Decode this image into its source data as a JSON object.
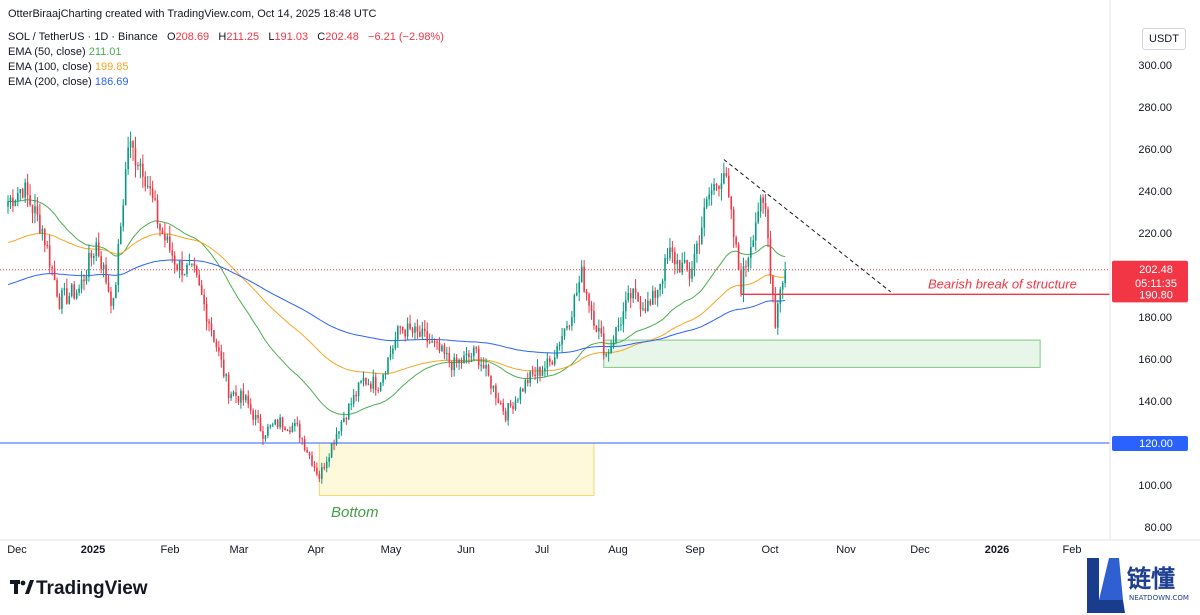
{
  "header": {
    "attribution": "OtterBiraajCharting created with TradingView.com, Oct 14, 2025 18:48 UTC"
  },
  "legend": {
    "symbol_line_prefix": "SOL / TetherUS · 1D · Binance",
    "ohlc": {
      "o_label": "O",
      "o_value": "208.69",
      "h_label": "H",
      "h_value": "211.25",
      "l_label": "L",
      "l_value": "191.03",
      "c_label": "C",
      "c_value": "202.48",
      "change": "−6.21 (−2.98%)"
    },
    "indicators": [
      {
        "label": "EMA (50, close)",
        "value": "211.01",
        "color": "#4caf50"
      },
      {
        "label": "EMA (100, close)",
        "value": "199.85",
        "color": "#f5a623"
      },
      {
        "label": "EMA (200, close)",
        "value": "186.69",
        "color": "#2962ff"
      }
    ]
  },
  "currency_button": "USDT",
  "price_labels": {
    "last_price": "202.48",
    "countdown": "05:11:35",
    "bos_level": "190.80",
    "support_level": "120.00"
  },
  "annotations": {
    "bos_text": "Bearish break of structure",
    "bottom_text": "Bottom"
  },
  "branding": {
    "tradingview": "TradingView",
    "corner_cn": "链懂",
    "corner_en": "NEATDOWN.COM"
  },
  "colors": {
    "up": "#089981",
    "down": "#f23645",
    "ema50": "#4caf50",
    "ema100": "#f5a623",
    "ema200": "#2962ff",
    "support_line": "#2962ff",
    "bos": "#f23645",
    "demand_zone": "#e8f5e9",
    "bottom_zone": "#fff9db"
  },
  "chart_data": {
    "type": "candlestick",
    "symbol": "SOL / TetherUS",
    "interval": "1D",
    "exchange": "Binance",
    "y_axis": {
      "ticks": [
        80,
        100,
        120,
        140,
        160,
        180,
        200,
        220,
        240,
        260,
        280,
        300
      ],
      "tick_labels": [
        "80.00",
        "100.00",
        "120.00",
        "140.00",
        "160.00",
        "180.00",
        "200.00",
        "220.00",
        "240.00",
        "260.00",
        "280.00",
        "300.00"
      ],
      "ylim": [
        74,
        312
      ]
    },
    "x_axis": {
      "ticks": [
        "Dec",
        "2025",
        "Feb",
        "Mar",
        "Apr",
        "May",
        "Jun",
        "Jul",
        "Aug",
        "Sep",
        "Oct",
        "Nov",
        "Dec",
        "2026",
        "Feb"
      ],
      "bold_ticks": [
        "2025",
        "2026"
      ]
    },
    "price_anchors": [
      {
        "date": "2024-12-01",
        "close": 235
      },
      {
        "date": "2024-12-07",
        "close": 242
      },
      {
        "date": "2024-12-15",
        "close": 222
      },
      {
        "date": "2024-12-22",
        "close": 188
      },
      {
        "date": "2024-12-30",
        "close": 193
      },
      {
        "date": "2025-01-06",
        "close": 215
      },
      {
        "date": "2025-01-13",
        "close": 185
      },
      {
        "date": "2025-01-19",
        "close": 262
      },
      {
        "date": "2025-01-25",
        "close": 252
      },
      {
        "date": "2025-02-01",
        "close": 222
      },
      {
        "date": "2025-02-08",
        "close": 205
      },
      {
        "date": "2025-02-15",
        "close": 200
      },
      {
        "date": "2025-02-22",
        "close": 175
      },
      {
        "date": "2025-03-01",
        "close": 145
      },
      {
        "date": "2025-03-08",
        "close": 140
      },
      {
        "date": "2025-03-15",
        "close": 125
      },
      {
        "date": "2025-03-22",
        "close": 130
      },
      {
        "date": "2025-03-29",
        "close": 127
      },
      {
        "date": "2025-04-07",
        "close": 104
      },
      {
        "date": "2025-04-15",
        "close": 128
      },
      {
        "date": "2025-04-25",
        "close": 150
      },
      {
        "date": "2025-05-01",
        "close": 148
      },
      {
        "date": "2025-05-10",
        "close": 175
      },
      {
        "date": "2025-05-20",
        "close": 170
      },
      {
        "date": "2025-06-01",
        "close": 157
      },
      {
        "date": "2025-06-10",
        "close": 163
      },
      {
        "date": "2025-06-22",
        "close": 134
      },
      {
        "date": "2025-07-01",
        "close": 150
      },
      {
        "date": "2025-07-10",
        "close": 158
      },
      {
        "date": "2025-07-18",
        "close": 180
      },
      {
        "date": "2025-07-23",
        "close": 200
      },
      {
        "date": "2025-07-28",
        "close": 180
      },
      {
        "date": "2025-08-02",
        "close": 162
      },
      {
        "date": "2025-08-12",
        "close": 190
      },
      {
        "date": "2025-08-20",
        "close": 185
      },
      {
        "date": "2025-08-28",
        "close": 210
      },
      {
        "date": "2025-09-05",
        "close": 200
      },
      {
        "date": "2025-09-13",
        "close": 238
      },
      {
        "date": "2025-09-19",
        "close": 250
      },
      {
        "date": "2025-09-26",
        "close": 195
      },
      {
        "date": "2025-10-03",
        "close": 232
      },
      {
        "date": "2025-10-06",
        "close": 230
      },
      {
        "date": "2025-10-10",
        "close": 178
      },
      {
        "date": "2025-10-12",
        "close": 195
      },
      {
        "date": "2025-10-14",
        "close": 202.48
      }
    ],
    "ema_series": [
      {
        "name": "EMA (50, close)",
        "last": 211.01
      },
      {
        "name": "EMA (100, close)",
        "last": 199.85
      },
      {
        "name": "EMA (200, close)",
        "last": 186.69
      }
    ],
    "levels": [
      {
        "name": "last_price",
        "value": 202.48
      },
      {
        "name": "bearish_break_of_structure",
        "value": 190.8
      },
      {
        "name": "support",
        "value": 120
      }
    ],
    "zones": [
      {
        "name": "demand_zone",
        "y_low": 156,
        "y_high": 169,
        "x_start": "2025-08-01",
        "x_end": "2026-01-26"
      },
      {
        "name": "bottom_zone",
        "y_low": 95,
        "y_high": 120,
        "x_start": "2025-04-07",
        "x_end": "2025-07-28"
      }
    ],
    "trendline": {
      "x_start": "2025-09-19",
      "y_start": 255,
      "x_end": "2025-11-26",
      "y_end": 192
    }
  }
}
